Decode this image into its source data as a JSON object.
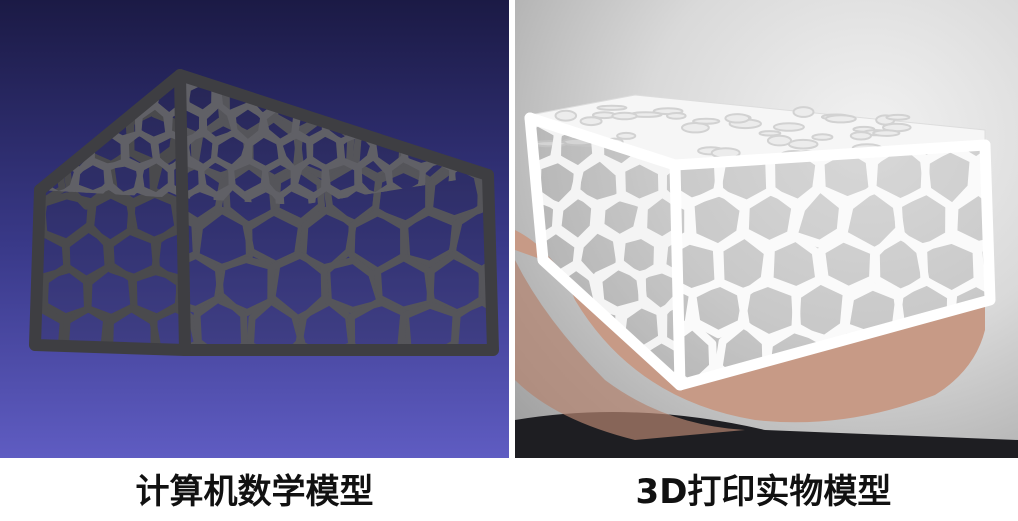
{
  "captions": {
    "left": "计算机数学模型",
    "right": "3D打印实物模型"
  },
  "colors": {
    "viewport_top": "#1b1a45",
    "viewport_bottom": "#5f5cc2",
    "model_gray": "#4a4a4d",
    "print_white": "#f4f4f4",
    "hand_skin": "#c79a86"
  }
}
